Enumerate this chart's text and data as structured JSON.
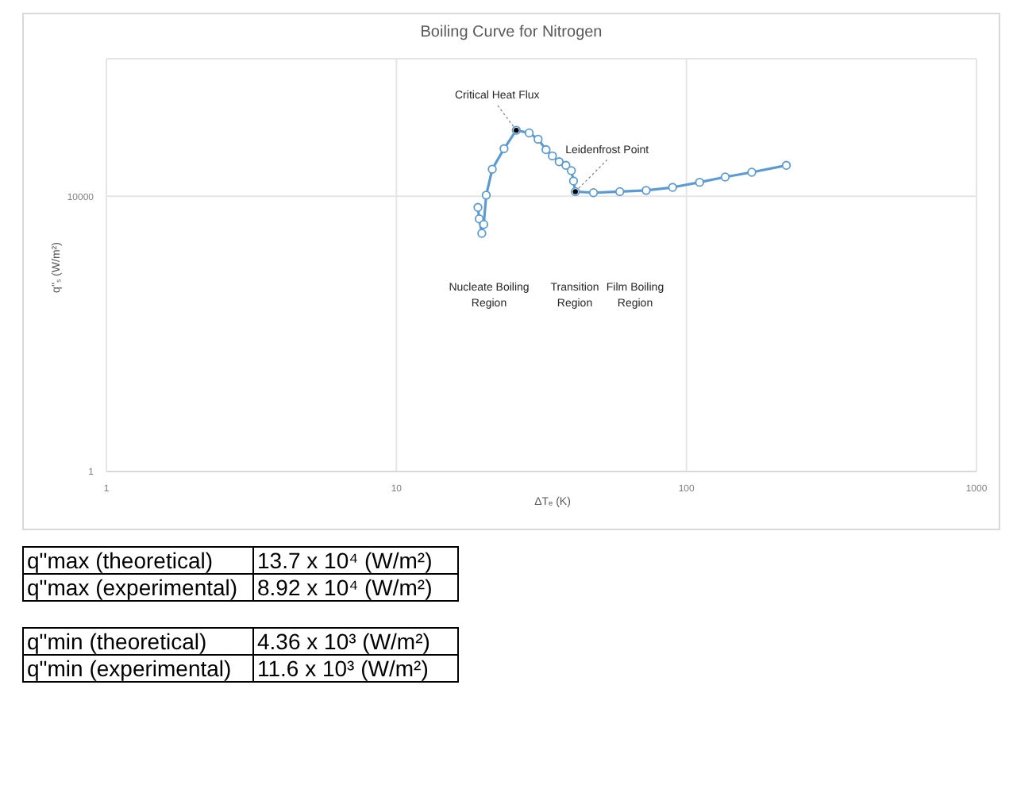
{
  "chart_data": {
    "type": "line",
    "title": "Boiling Curve for Nitrogen",
    "xlabel": "ΔTₑ (K)",
    "ylabel": "q''ₛ (W/m²)",
    "log": "xy",
    "grid": true,
    "marker": "circle",
    "line_style": "solid",
    "xlim": [
      1,
      1000
    ],
    "xticks": [
      1,
      10,
      100,
      1000
    ],
    "ylim": [
      1,
      1000000
    ],
    "yticks": [
      1,
      10000
    ],
    "series": [
      {
        "color": "#5b9bd5",
        "x": [
          19.1,
          19.3,
          19.7,
          20.0,
          20.4,
          21.4,
          23.5,
          25.9,
          28.7,
          30.8,
          32.8,
          34.5,
          36.4,
          38.4,
          40.1,
          40.8,
          41.4,
          47.8,
          58.9,
          72.6,
          89.6,
          111,
          136,
          168,
          221
        ],
        "values": [
          6900,
          4700,
          2900,
          3900,
          10400,
          24800,
          49300,
          91200,
          83400,
          67600,
          47700,
          38700,
          31800,
          28200,
          23600,
          16700,
          11700,
          11300,
          11700,
          12200,
          13500,
          16000,
          19100,
          22400,
          28200
        ]
      }
    ],
    "annotations": [
      {
        "text": "Critical Heat Flux",
        "x": 25.9,
        "y": 91200
      },
      {
        "text": "Leidenfrost Point",
        "x": 41.4,
        "y": 11700
      },
      "Nucleate Boiling Region",
      "Transition Region",
      "Film Boiling Region",
      "q\"max (theoretical)",
      "13.7 x 10⁴  (W/m²)",
      "q\"max (experimental)",
      "8.92 x 10⁴  (W/m²)",
      "q\"min (theoretical)",
      "4.36 x 10³  (W/m²)",
      "q\"min (experimental)",
      "11.6 x 10³  (W/m²)"
    ]
  }
}
